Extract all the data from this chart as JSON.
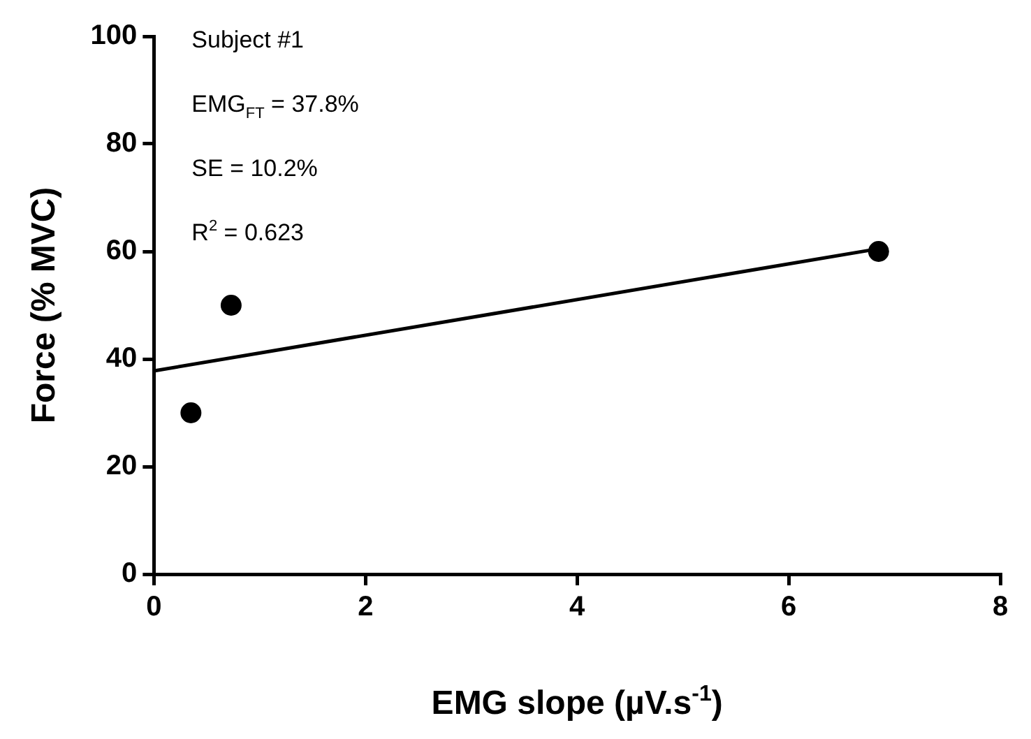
{
  "chart_data": {
    "type": "scatter",
    "xlabel": "EMG slope (µV.s$^{-1}$)",
    "ylabel": "Force (% MVC)",
    "annotations": [
      "Subject #1",
      "EMG$_{FT}$ = 37.8%",
      "SE = 10.2%",
      "R$^{2}$ = 0.623"
    ],
    "xlim": [
      0,
      8
    ],
    "ylim": [
      0,
      100
    ],
    "xticks": [
      0,
      2,
      4,
      6,
      8
    ],
    "yticks": [
      0,
      20,
      40,
      60,
      80,
      100
    ],
    "grid": false,
    "legend": false,
    "marker": "circle",
    "series": [
      {
        "x": [
          0.35,
          0.73,
          6.85
        ],
        "values": [
          30,
          50,
          60
        ],
        "color": "#000000"
      },
      {
        "type": "line",
        "x": [
          0,
          6.85
        ],
        "values": [
          37.8,
          60.5
        ],
        "color": "#000000",
        "marker": "none"
      }
    ]
  }
}
